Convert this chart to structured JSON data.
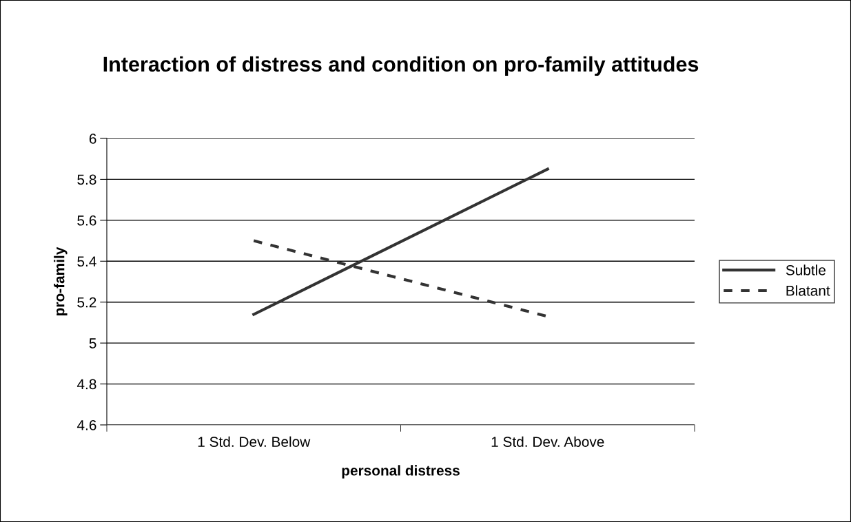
{
  "chart_data": {
    "type": "line",
    "title": "Interaction of distress and condition on pro-family attitudes",
    "xlabel": "personal distress",
    "ylabel": "pro-family",
    "categories": [
      "1 Std. Dev. Below",
      "1 Std. Dev. Above"
    ],
    "series": [
      {
        "name": "Subtle",
        "color": "#333333",
        "values": [
          5.14,
          5.85
        ],
        "line_style": "solid"
      },
      {
        "name": "Blatant",
        "color": "#333333",
        "values": [
          5.5,
          5.13
        ],
        "line_style": "dashed"
      }
    ],
    "ylim": [
      4.6,
      6
    ],
    "yticks": [
      4.6,
      4.8,
      5,
      5.2,
      5.4,
      5.6,
      5.8,
      6
    ],
    "grid": "y",
    "legend": "right",
    "marker": "none"
  }
}
